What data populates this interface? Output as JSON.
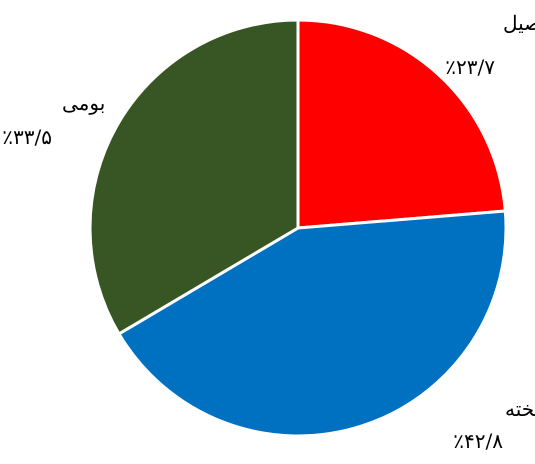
{
  "chart_data": {
    "type": "pie",
    "title": "",
    "slices": [
      {
        "label": "اصیل",
        "value": 23.7,
        "value_label": "٪۲۳/۷",
        "color": "#FF0000"
      },
      {
        "label": "آمیخته",
        "value": 42.8,
        "value_label": "٪۴۲/۸",
        "color": "#0070C0"
      },
      {
        "label": "بومی",
        "value": 33.5,
        "value_label": "٪۳۳/۵",
        "color": "#375623"
      }
    ],
    "start_direction": "top",
    "direction": "clockwise",
    "legend": "none",
    "slice_border_color": "#ffffff"
  }
}
